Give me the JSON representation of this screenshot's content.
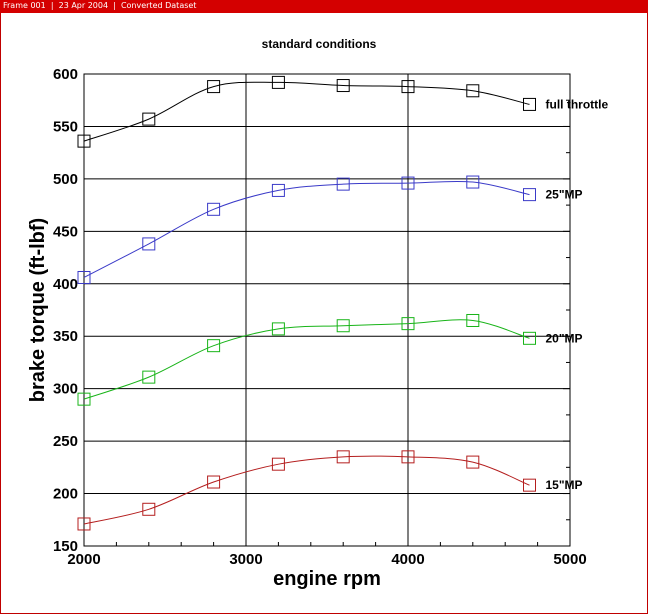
{
  "header": {
    "text": "Frame 001  |  23 Apr 2004  |  Converted Dataset"
  },
  "colors": {
    "header_bar": "#d40000",
    "full_throttle": "#000000",
    "mp25": "#3a3ac8",
    "mp20": "#18b418",
    "mp15": "#b41e1e"
  },
  "chart_data": {
    "type": "line",
    "title": "standard conditions",
    "xlabel": "engine rpm",
    "ylabel": "brake torque (ft-lbf)",
    "xlim": [
      2000,
      5000
    ],
    "ylim": [
      150,
      600
    ],
    "xticks": [
      2000,
      3000,
      4000,
      5000
    ],
    "yticks": [
      150,
      200,
      250,
      300,
      350,
      400,
      450,
      500,
      550,
      600
    ],
    "grid": true,
    "marker": "square",
    "series": [
      {
        "name": "full throttle",
        "color": "#000000",
        "x": [
          2000,
          2400,
          2800,
          3200,
          3600,
          4000,
          4400,
          4750
        ],
        "y": [
          536,
          557,
          588,
          592,
          589,
          588,
          584,
          571
        ]
      },
      {
        "name": "25\"MP",
        "color": "#3a3ac8",
        "x": [
          2000,
          2400,
          2800,
          3200,
          3600,
          4000,
          4400,
          4750
        ],
        "y": [
          406,
          438,
          471,
          489,
          495,
          496,
          497,
          485
        ]
      },
      {
        "name": "20\"MP",
        "color": "#18b418",
        "x": [
          2000,
          2400,
          2800,
          3200,
          3600,
          4000,
          4400,
          4750
        ],
        "y": [
          290,
          311,
          341,
          357,
          360,
          362,
          365,
          348
        ]
      },
      {
        "name": "15\"MP",
        "color": "#b41e1e",
        "x": [
          2000,
          2400,
          2800,
          3200,
          3600,
          4000,
          4400,
          4750
        ],
        "y": [
          171,
          185,
          211,
          228,
          235,
          235,
          230,
          208
        ]
      }
    ]
  }
}
